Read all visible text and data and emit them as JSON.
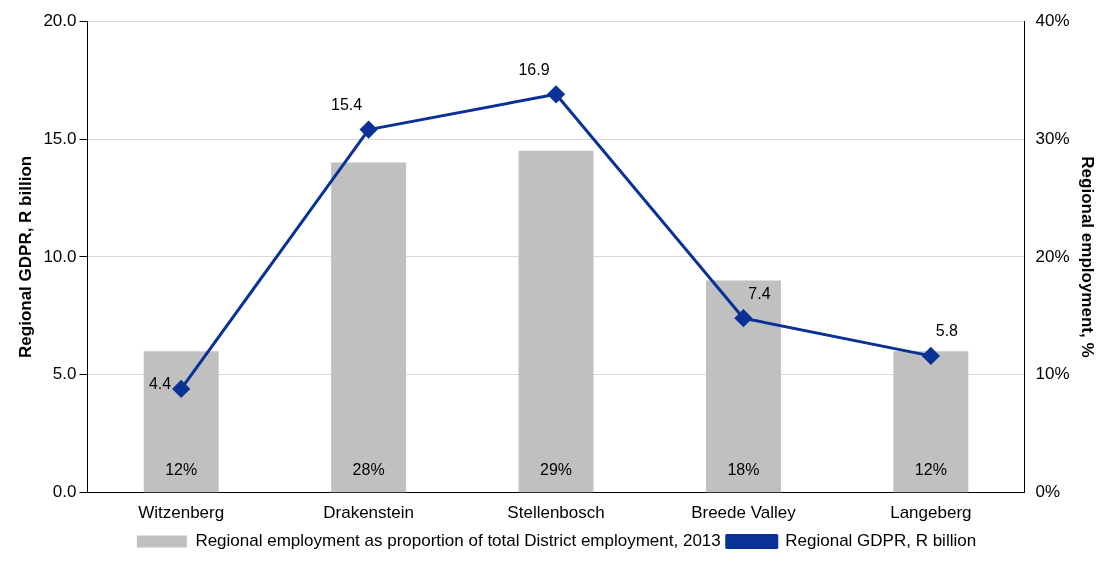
{
  "chart_data": {
    "type": "bar",
    "categories": [
      "Witzenberg",
      "Drakenstein",
      "Stellenbosch",
      "Breede Valley",
      "Langeberg"
    ],
    "ylabel": "Regional GDPR, R billion",
    "y2label": "Regional employment, %",
    "series": [
      {
        "name": "Regional employment as proportion of total District employment, 2013",
        "axis": "y2",
        "color": "#c0c0c0",
        "values": [
          12,
          28,
          29,
          18,
          12
        ],
        "value_labels": [
          "12%",
          "28%",
          "29%",
          "18%",
          "12%"
        ]
      },
      {
        "name": "Regional GDPR, R billion",
        "type": "line",
        "color": "#0a3196",
        "values": [
          4.4,
          15.4,
          16.9,
          7.4,
          5.8
        ],
        "marker": "diamond",
        "data_labels": true
      }
    ],
    "ylim": [
      0,
      20
    ],
    "yticks": [
      {
        "value": 0,
        "label": "0.0"
      },
      {
        "value": 5,
        "label": "5.0"
      },
      {
        "value": 10,
        "label": "10.0"
      },
      {
        "value": 15,
        "label": "15.0"
      },
      {
        "value": 20,
        "label": "20.0"
      }
    ],
    "y2lim": [
      0,
      40
    ],
    "y2ticks": [
      {
        "value": 0,
        "label": "0%"
      },
      {
        "value": 10,
        "label": "10%"
      },
      {
        "value": 20,
        "label": "20%"
      },
      {
        "value": 30,
        "label": "30%"
      },
      {
        "value": 40,
        "label": "40%"
      }
    ],
    "grid": "y",
    "legend": "bottom"
  }
}
